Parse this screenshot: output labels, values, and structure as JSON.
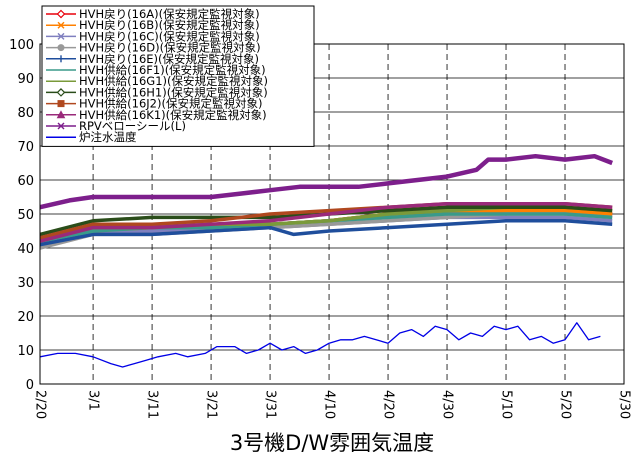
{
  "chart_data": {
    "type": "line",
    "title": "3号機D/W雰囲気温度",
    "xlabel": "",
    "ylabel": "",
    "ylim": [
      0,
      100
    ],
    "y_ticks": [
      "0",
      "10",
      "20",
      "30",
      "40",
      "50",
      "60",
      "70",
      "80",
      "90",
      "100"
    ],
    "x_ticks": [
      "2/20",
      "3/1",
      "3/11",
      "3/21",
      "3/31",
      "4/10",
      "4/20",
      "4/30",
      "5/10",
      "5/20",
      "5/30"
    ],
    "x_start": "2/20",
    "x_end": "5/30",
    "grid": true,
    "legend_position": "top-left",
    "series": [
      {
        "name": "HVH戻り(16A)(保安規定監視対象)",
        "color": "#e8000b",
        "marker": "diamond",
        "x": [
          "2/20",
          "3/1",
          "3/11",
          "3/21",
          "3/31",
          "4/10",
          "4/20",
          "4/30",
          "5/10",
          "5/20",
          "5/28"
        ],
        "values": [
          43,
          46,
          46,
          47,
          47,
          48,
          50,
          51,
          51,
          51,
          50
        ]
      },
      {
        "name": "HVH戻り(16B)(保安規定監視対象)",
        "color": "#ff8000",
        "marker": "x",
        "x": [
          "2/20",
          "3/1",
          "3/11",
          "3/21",
          "3/31",
          "4/10",
          "4/20",
          "4/30",
          "5/10",
          "5/20",
          "5/28"
        ],
        "values": [
          42,
          45,
          45,
          46,
          47,
          48,
          50,
          51,
          51,
          51,
          50
        ]
      },
      {
        "name": "HVH戻り(16C)(保安規定監視対象)",
        "color": "#7f7fbf",
        "marker": "x",
        "x": [
          "2/20",
          "3/1",
          "3/11",
          "3/21",
          "3/31",
          "4/10",
          "4/20",
          "4/30",
          "5/10",
          "5/20",
          "5/28"
        ],
        "values": [
          41,
          44,
          45,
          46,
          46,
          47,
          48,
          49,
          49,
          49,
          48
        ]
      },
      {
        "name": "HVH戻り(16D)(保安規定監視対象)",
        "color": "#999999",
        "marker": "circle",
        "x": [
          "2/20",
          "3/1",
          "3/11",
          "3/21",
          "3/31",
          "4/10",
          "4/20",
          "4/30",
          "5/10",
          "5/20",
          "5/28"
        ],
        "values": [
          40,
          44,
          44,
          45,
          46,
          47,
          48,
          49,
          50,
          50,
          49
        ]
      },
      {
        "name": "HVH戻り(16E)(保安規定監視対象)",
        "color": "#1f4e9c",
        "marker": "plus",
        "x": [
          "2/20",
          "3/1",
          "3/11",
          "3/21",
          "3/31",
          "4/4",
          "4/10",
          "4/20",
          "4/30",
          "5/10",
          "5/20",
          "5/28"
        ],
        "values": [
          41,
          44,
          44,
          45,
          46,
          44,
          45,
          46,
          47,
          48,
          48,
          47
        ]
      },
      {
        "name": "HVH供給(16F1)(保安規定監視対象)",
        "color": "#3a9a8a",
        "marker": "dash",
        "x": [
          "2/20",
          "3/1",
          "3/11",
          "3/21",
          "3/31",
          "4/10",
          "4/20",
          "4/30",
          "5/10",
          "5/20",
          "5/28"
        ],
        "values": [
          42,
          45,
          46,
          46,
          47,
          48,
          49,
          50,
          50,
          50,
          49
        ]
      },
      {
        "name": "HVH供給(16G1)(保安規定監視対象)",
        "color": "#7a9a3a",
        "marker": "dash",
        "x": [
          "2/20",
          "3/1",
          "3/11",
          "3/21",
          "3/31",
          "4/10",
          "4/20",
          "4/30",
          "5/10",
          "5/20",
          "5/28"
        ],
        "values": [
          43,
          46,
          46,
          47,
          47,
          48,
          50,
          51,
          52,
          52,
          51
        ]
      },
      {
        "name": "HVH供給(16H1)(保安規定監視対象)",
        "color": "#2a4d1a",
        "marker": "diamond",
        "x": [
          "2/20",
          "3/1",
          "3/11",
          "3/21",
          "3/31",
          "4/10",
          "4/20",
          "4/30",
          "5/10",
          "5/20",
          "5/28"
        ],
        "values": [
          44,
          48,
          49,
          49,
          49,
          50,
          51,
          52,
          52,
          52,
          51
        ]
      },
      {
        "name": "HVH供給(16J2)(保安規定監視対象)",
        "color": "#b0481f",
        "marker": "square",
        "x": [
          "2/20",
          "3/1",
          "3/11",
          "3/21",
          "3/31",
          "4/10",
          "4/20",
          "4/30",
          "5/10",
          "5/20",
          "5/28"
        ],
        "values": [
          43,
          47,
          47,
          48,
          50,
          51,
          52,
          53,
          53,
          53,
          52
        ]
      },
      {
        "name": "HVH供給(16K1)(保安規定監視対象)",
        "color": "#9a2a7a",
        "marker": "triangle",
        "x": [
          "2/20",
          "3/1",
          "3/11",
          "3/21",
          "3/31",
          "4/10",
          "4/20",
          "4/30",
          "5/10",
          "5/20",
          "5/28"
        ],
        "values": [
          42,
          46,
          46,
          47,
          48,
          50,
          52,
          53,
          53,
          53,
          52
        ]
      },
      {
        "name": "RPVベローシール(L)",
        "color": "#7d1f8c",
        "marker": "x",
        "x": [
          "2/20",
          "2/25",
          "3/1",
          "3/6",
          "3/11",
          "3/16",
          "3/21",
          "3/26",
          "3/31",
          "4/5",
          "4/10",
          "4/15",
          "4/20",
          "4/25",
          "4/30",
          "5/5",
          "5/7",
          "5/8",
          "5/10",
          "5/15",
          "5/20",
          "5/25",
          "5/28"
        ],
        "values": [
          52,
          54,
          55,
          55,
          55,
          55,
          55,
          56,
          57,
          58,
          58,
          58,
          59,
          60,
          61,
          63,
          66,
          66,
          66,
          67,
          66,
          67,
          65
        ]
      },
      {
        "name": "炉注水温度",
        "color": "#0000e6",
        "marker": "none",
        "x": [
          "2/20",
          "2/23",
          "2/26",
          "3/1",
          "3/4",
          "3/6",
          "3/8",
          "3/10",
          "3/12",
          "3/15",
          "3/17",
          "3/20",
          "3/22",
          "3/25",
          "3/27",
          "3/29",
          "3/31",
          "4/2",
          "4/4",
          "4/6",
          "4/8",
          "4/10",
          "4/12",
          "4/14",
          "4/16",
          "4/18",
          "4/20",
          "4/22",
          "4/24",
          "4/26",
          "4/28",
          "4/30",
          "5/2",
          "5/4",
          "5/6",
          "5/8",
          "5/10",
          "5/12",
          "5/14",
          "5/16",
          "5/18",
          "5/20",
          "5/22",
          "5/24",
          "5/26"
        ],
        "values": [
          8,
          9,
          9,
          8,
          6,
          5,
          6,
          7,
          8,
          9,
          8,
          9,
          11,
          11,
          9,
          10,
          12,
          10,
          11,
          9,
          10,
          12,
          13,
          13,
          14,
          13,
          12,
          15,
          16,
          14,
          17,
          16,
          13,
          15,
          14,
          17,
          16,
          17,
          13,
          14,
          12,
          13,
          18,
          13,
          14
        ]
      }
    ]
  }
}
